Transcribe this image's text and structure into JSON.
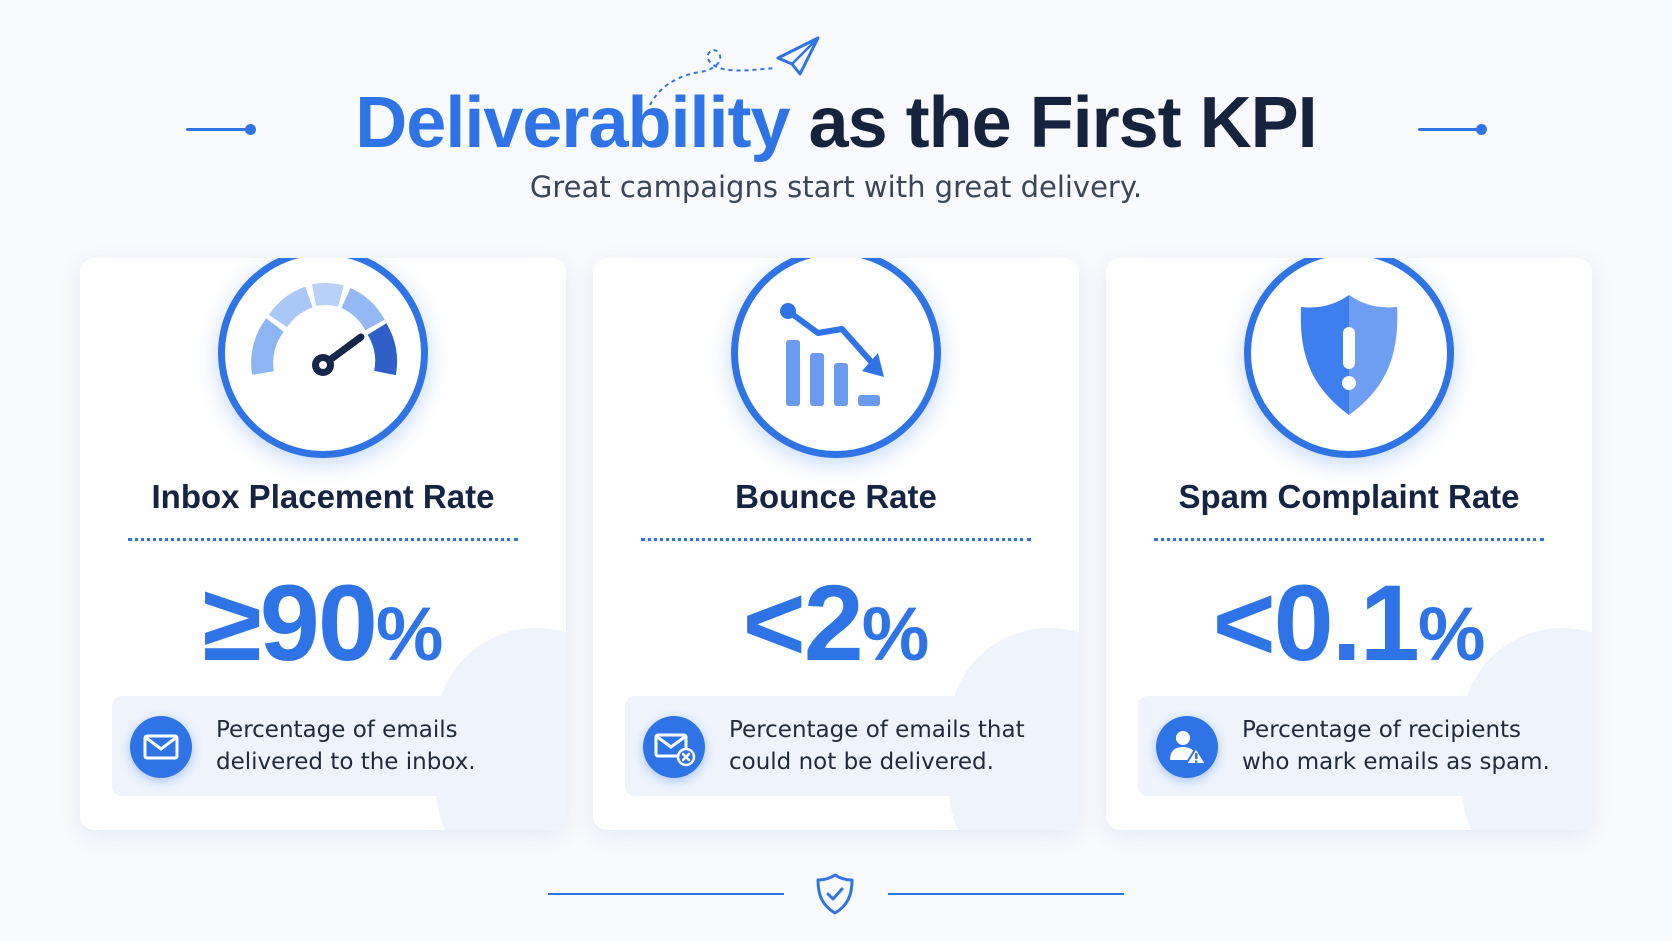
{
  "header": {
    "title_accent": "Deliverability",
    "title_rest": "as the First KPI",
    "subtitle": "Great campaigns start with great delivery."
  },
  "colors": {
    "accent": "#2f74e6",
    "heading": "#16233f",
    "card_bg": "#ffffff",
    "desc_bg": "#eef3fc"
  },
  "cards": [
    {
      "name": "Inbox Placement Rate",
      "value": "≥90",
      "unit": "%",
      "description": "Percentage of emails delivered to the inbox.",
      "icon": "speedometer-icon",
      "desc_icon": "envelope-icon"
    },
    {
      "name": "Bounce Rate",
      "value": "<2",
      "unit": "%",
      "description": "Percentage of emails that could not be delivered.",
      "icon": "declining-bar-chart-icon",
      "desc_icon": "envelope-x-icon"
    },
    {
      "name": "Spam Complaint Rate",
      "value": "<0.1",
      "unit": "%",
      "description": "Percentage of recipients who mark emails as spam.",
      "icon": "shield-alert-icon",
      "desc_icon": "user-warning-icon"
    }
  ],
  "footer": {
    "icon": "shield-check-icon"
  }
}
